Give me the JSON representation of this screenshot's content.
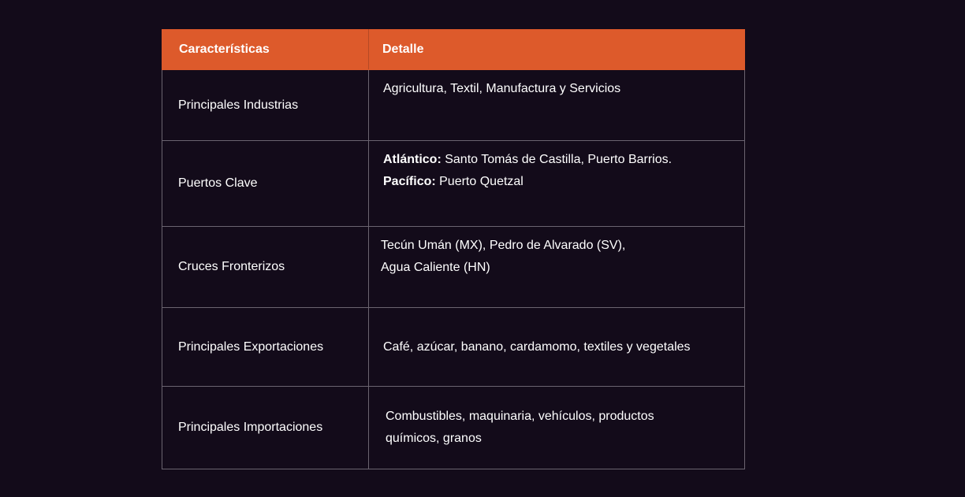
{
  "table": {
    "headers": {
      "feature": "Características",
      "detail": "Detalle"
    },
    "rows": [
      {
        "feature": "Principales Industrias",
        "detail_line1": "Agricultura, Textil, Manufactura y Servicios"
      },
      {
        "feature": "Puertos Clave",
        "atlantic_label": "Atlántico:",
        "atlantic_value": " Santo Tomás de Castilla, Puerto Barrios.",
        "pacific_label": "Pacífico:",
        "pacific_value": " Puerto Quetzal"
      },
      {
        "feature": "Cruces Fronterizos",
        "detail_line1": "Tecún Umán (MX), Pedro de Alvarado (SV),",
        "detail_line2": "Agua Caliente (HN)"
      },
      {
        "feature": "Principales Exportaciones",
        "detail_line1": "Café, azúcar, banano, cardamomo, textiles y vegetales"
      },
      {
        "feature": "Principales Importaciones",
        "detail_line1": "Combustibles, maquinaria, vehículos, productos",
        "detail_line2": "químicos, granos"
      }
    ]
  },
  "colors": {
    "background": "#130b1a",
    "header": "#dd5a2b",
    "border": "#6b6470",
    "text": "#ffffff"
  }
}
